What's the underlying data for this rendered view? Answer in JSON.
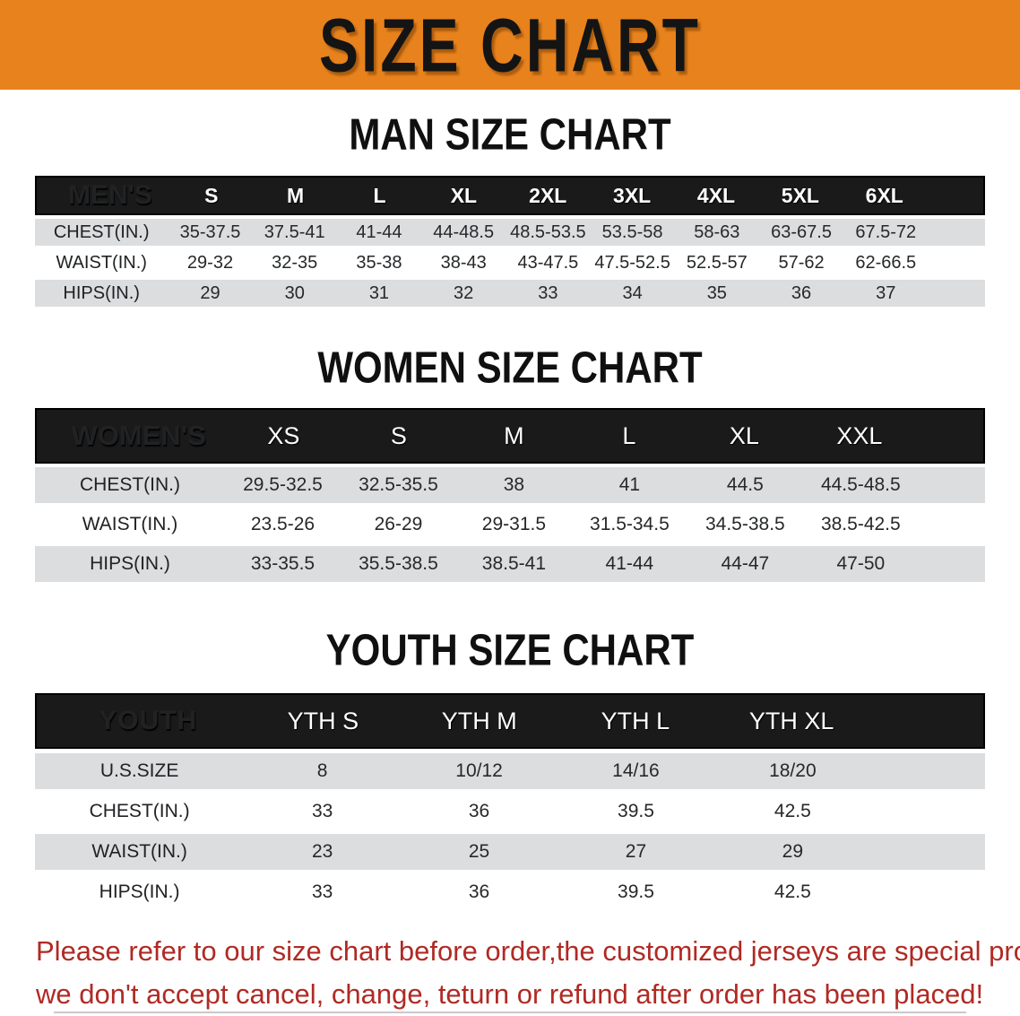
{
  "banner": {
    "title": "SIZE CHART"
  },
  "colors": {
    "banner_bg": "#E8821C",
    "band_bg": "#1A1A1A",
    "row_gray": "#DBDDDF",
    "footer_red": "#B02A24"
  },
  "sections": {
    "man": {
      "heading": "MAN SIZE CHART",
      "table": {
        "corner": "MEN'S",
        "sizes": [
          "S",
          "M",
          "L",
          "XL",
          "2XL",
          "3XL",
          "4XL",
          "5XL",
          "6XL"
        ],
        "rows": [
          {
            "label": "CHEST(IN.)",
            "values": [
              "35-37.5",
              "37.5-41",
              "41-44",
              "44-48.5",
              "48.5-53.5",
              "53.5-58",
              "58-63",
              "63-67.5",
              "67.5-72"
            ]
          },
          {
            "label": "WAIST(IN.)",
            "values": [
              "29-32",
              "32-35",
              "35-38",
              "38-43",
              "43-47.5",
              "47.5-52.5",
              "52.5-57",
              "57-62",
              "62-66.5"
            ]
          },
          {
            "label": "HIPS(IN.)",
            "values": [
              "29",
              "30",
              "31",
              "32",
              "33",
              "34",
              "35",
              "36",
              "37"
            ]
          }
        ]
      }
    },
    "women": {
      "heading": "WOMEN SIZE CHART",
      "table": {
        "corner": "WOMEN'S",
        "sizes": [
          "XS",
          "S",
          "M",
          "L",
          "XL",
          "XXL"
        ],
        "rows": [
          {
            "label": "CHEST(IN.)",
            "values": [
              "29.5-32.5",
              "32.5-35.5",
              "38",
              "41",
              "44.5",
              "44.5-48.5"
            ]
          },
          {
            "label": "WAIST(IN.)",
            "values": [
              "23.5-26",
              "26-29",
              "29-31.5",
              "31.5-34.5",
              "34.5-38.5",
              "38.5-42.5"
            ]
          },
          {
            "label": "HIPS(IN.)",
            "values": [
              "33-35.5",
              "35.5-38.5",
              "38.5-41",
              "41-44",
              "44-47",
              "47-50"
            ]
          }
        ]
      }
    },
    "youth": {
      "heading": "YOUTH SIZE CHART",
      "table": {
        "corner": "YOUTH",
        "sizes": [
          "YTH S",
          "YTH M",
          "YTH L",
          "YTH XL"
        ],
        "rows": [
          {
            "label": "U.S.SIZE",
            "values": [
              "8",
              "10/12",
              "14/16",
              "18/20"
            ]
          },
          {
            "label": "CHEST(IN.)",
            "values": [
              "33",
              "36",
              "39.5",
              "42.5"
            ]
          },
          {
            "label": "WAIST(IN.)",
            "values": [
              "23",
              "25",
              "27",
              "29"
            ]
          },
          {
            "label": "HIPS(IN.)",
            "values": [
              "33",
              "36",
              "39.5",
              "42.5"
            ]
          }
        ]
      }
    }
  },
  "footer": {
    "line1": "Please refer to our size chart before order,the customized jerseys are special products,",
    "line2": "we don't accept cancel, change, teturn or refund after order has been placed!"
  }
}
